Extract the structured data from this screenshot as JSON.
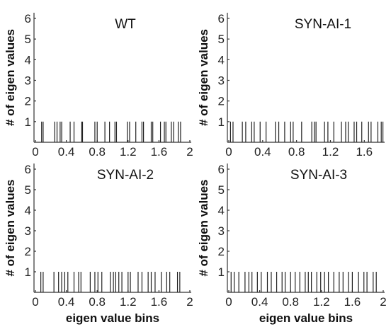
{
  "chart_data": [
    {
      "type": "bar",
      "title": "WT",
      "ylabel": "# of eigen values",
      "xlabel": "",
      "xlim": [
        0,
        2
      ],
      "ylim": [
        0,
        6
      ],
      "xticks": [
        "0",
        "0.4",
        "0.8",
        "1.2",
        "1.6",
        "2"
      ],
      "yticks": [
        "1",
        "2",
        "3",
        "4",
        "5",
        "6"
      ],
      "x": [
        0.08,
        0.1,
        0.25,
        0.28,
        0.32,
        0.34,
        0.45,
        0.5,
        0.6,
        0.61,
        0.77,
        0.8,
        0.9,
        0.96,
        1.03,
        1.05,
        1.19,
        1.22,
        1.3,
        1.38,
        1.4,
        1.5,
        1.52,
        1.62,
        1.67,
        1.69,
        1.76,
        1.79,
        1.85,
        1.88
      ],
      "values": [
        1,
        1,
        1,
        1,
        1,
        1,
        1,
        1,
        1,
        1,
        1,
        1,
        1,
        1,
        1,
        1,
        1,
        1,
        1,
        1,
        1,
        1,
        1,
        1,
        1,
        1,
        1,
        1,
        1,
        1
      ]
    },
    {
      "type": "bar",
      "title": "SYN-AI-1",
      "ylabel": "# of eigen values",
      "xlabel": "",
      "xlim": [
        0,
        1.84
      ],
      "ylim": [
        0,
        6
      ],
      "xticks": [
        "0",
        "0.4",
        "0.8",
        "1.2",
        "1.6"
      ],
      "yticks": [
        "1",
        "2",
        "3",
        "4",
        "5",
        "6"
      ],
      "x": [
        0.02,
        0.05,
        0.16,
        0.2,
        0.27,
        0.3,
        0.37,
        0.44,
        0.55,
        0.59,
        0.66,
        0.73,
        0.76,
        0.86,
        0.98,
        1.01,
        1.03,
        1.13,
        1.17,
        1.24,
        1.33,
        1.38,
        1.41,
        1.48,
        1.51,
        1.57,
        1.65,
        1.68,
        1.76,
        1.8,
        1.82
      ],
      "values": [
        1,
        1,
        1,
        1,
        1,
        1,
        1,
        1,
        1,
        1,
        1,
        1,
        1,
        1,
        1,
        1,
        1,
        1,
        1,
        1,
        1,
        1,
        1,
        1,
        1,
        1,
        1,
        1,
        1,
        1,
        1
      ]
    },
    {
      "type": "bar",
      "title": "SYN-AI-2",
      "ylabel": "# of eigen values",
      "xlabel": "eigen value bins",
      "xlim": [
        0,
        2
      ],
      "ylim": [
        0,
        6
      ],
      "xticks": [
        "0",
        "0.4",
        "0.8",
        "1.2",
        "1.6",
        "2"
      ],
      "yticks": [
        "1",
        "2",
        "3",
        "4",
        "5",
        "6"
      ],
      "x": [
        0.07,
        0.1,
        0.24,
        0.3,
        0.34,
        0.38,
        0.42,
        0.5,
        0.56,
        0.59,
        0.71,
        0.77,
        0.81,
        0.86,
        0.97,
        1.01,
        1.04,
        1.08,
        1.12,
        1.2,
        1.23,
        1.33,
        1.38,
        1.46,
        1.5,
        1.55,
        1.63,
        1.7,
        1.74,
        1.84,
        1.87
      ],
      "values": [
        1,
        1,
        1,
        1,
        1,
        1,
        1,
        1,
        1,
        1,
        1,
        1,
        1,
        1,
        1,
        1,
        1,
        1,
        1,
        1,
        1,
        1,
        1,
        1,
        1,
        1,
        1,
        1,
        1,
        1,
        1
      ]
    },
    {
      "type": "bar",
      "title": "SYN-AI-3",
      "ylabel": "# of eigen values",
      "xlabel": "eigen value bins",
      "xlim": [
        0,
        2
      ],
      "ylim": [
        0,
        6
      ],
      "xticks": [
        "0",
        "0.4",
        "0.8",
        "1.2",
        "1.6",
        "2"
      ],
      "yticks": [
        "1",
        "2",
        "3",
        "4",
        "5",
        "6"
      ],
      "x": [
        0.03,
        0.07,
        0.13,
        0.21,
        0.26,
        0.3,
        0.37,
        0.42,
        0.5,
        0.55,
        0.62,
        0.69,
        0.73,
        0.8,
        0.86,
        0.92,
        0.99,
        1.03,
        1.07,
        1.14,
        1.19,
        1.24,
        1.29,
        1.36,
        1.43,
        1.48,
        1.55,
        1.6,
        1.68,
        1.75,
        1.79,
        1.87,
        1.91
      ],
      "values": [
        1,
        1,
        1,
        1,
        1,
        1,
        1,
        1,
        1,
        1,
        1,
        1,
        1,
        1,
        1,
        1,
        1,
        1,
        1,
        1,
        1,
        1,
        1,
        1,
        1,
        1,
        1,
        1,
        1,
        1,
        1,
        1,
        1
      ]
    }
  ]
}
